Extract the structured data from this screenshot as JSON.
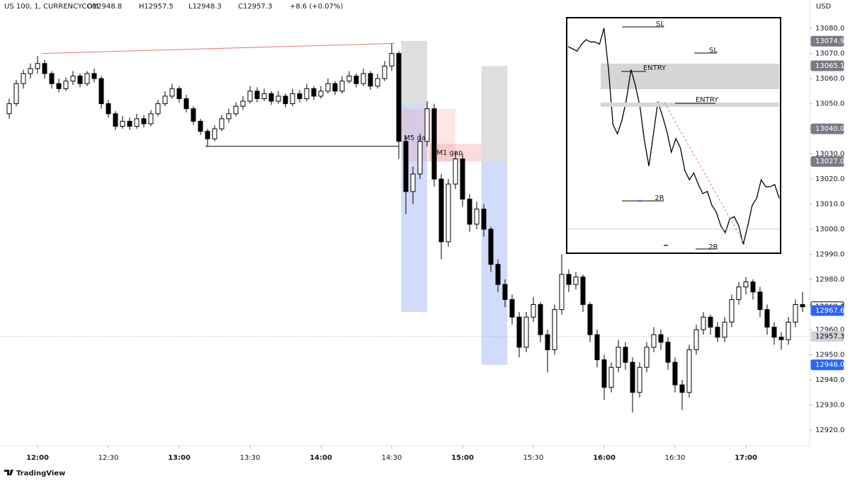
{
  "header": {
    "title": "US 100, 1, CURRENCYCOM",
    "ohlc": [
      "O12948.8",
      "H12957.5",
      "L12948.3",
      "C12957.3"
    ],
    "change": "+8.6 (+0.07%)",
    "currency": "USD"
  },
  "footer": {
    "brand": "TradingView"
  },
  "chart_data": {
    "type": "candlestick",
    "x": [
      "11:48",
      "11:51",
      "11:54",
      "11:57",
      "12:00",
      "12:03",
      "12:06",
      "12:09",
      "12:12",
      "12:15",
      "12:18",
      "12:21",
      "12:24",
      "12:27",
      "12:30",
      "12:33",
      "12:36",
      "12:39",
      "12:42",
      "12:45",
      "12:48",
      "12:51",
      "12:54",
      "12:57",
      "13:00",
      "13:03",
      "13:06",
      "13:09",
      "13:12",
      "13:15",
      "13:18",
      "13:21",
      "13:24",
      "13:27",
      "13:30",
      "13:33",
      "13:36",
      "13:39",
      "13:42",
      "13:45",
      "13:48",
      "13:51",
      "13:54",
      "13:57",
      "14:00",
      "14:03",
      "14:06",
      "14:09",
      "14:12",
      "14:15",
      "14:18",
      "14:21",
      "14:24",
      "14:27",
      "14:30",
      "14:33",
      "14:36",
      "14:39",
      "14:42",
      "14:45",
      "14:48",
      "14:51",
      "14:54",
      "14:57",
      "15:00",
      "15:03",
      "15:06",
      "15:09",
      "15:12",
      "15:15",
      "15:18",
      "15:21",
      "15:24",
      "15:27",
      "15:30",
      "15:33",
      "15:36",
      "15:39",
      "15:42",
      "15:45",
      "15:48",
      "15:51",
      "15:54",
      "15:57",
      "16:00",
      "16:03",
      "16:06",
      "16:09",
      "16:12",
      "16:15",
      "16:18",
      "16:21",
      "16:24",
      "16:27",
      "16:30",
      "16:33",
      "16:36",
      "16:39",
      "16:42",
      "16:45",
      "16:48",
      "16:51",
      "16:54",
      "16:57",
      "17:00",
      "17:03",
      "17:06",
      "17:09",
      "17:12",
      "17:15",
      "17:18",
      "17:21",
      "17:24"
    ],
    "candles": [
      [
        13046,
        13052,
        13044,
        13050
      ],
      [
        13050,
        13059.5,
        13049,
        13058
      ],
      [
        13058,
        13063.5,
        13056,
        13062
      ],
      [
        13062,
        13066,
        13060,
        13064
      ],
      [
        13064,
        13069,
        13062,
        13066
      ],
      [
        13066,
        13067.5,
        13060,
        13062
      ],
      [
        13062,
        13063,
        13056,
        13058
      ],
      [
        13058,
        13060,
        13054.5,
        13056
      ],
      [
        13056,
        13060.5,
        13055,
        13059
      ],
      [
        13059,
        13063,
        13057.5,
        13061
      ],
      [
        13061,
        13062,
        13056.5,
        13058
      ],
      [
        13058,
        13063,
        13057,
        13062
      ],
      [
        13062,
        13064,
        13058.5,
        13060
      ],
      [
        13060,
        13061,
        13048,
        13050
      ],
      [
        13050,
        13051.5,
        13044.5,
        13046
      ],
      [
        13046,
        13047,
        13039.5,
        13041
      ],
      [
        13041,
        13045,
        13040,
        13043
      ],
      [
        13043,
        13044.5,
        13039.5,
        13041
      ],
      [
        13041,
        13046,
        13040,
        13044
      ],
      [
        13044,
        13045.5,
        13040.5,
        13042
      ],
      [
        13042,
        13047.5,
        13041,
        13046
      ],
      [
        13046,
        13051.5,
        13045,
        13050
      ],
      [
        13050,
        13055,
        13049,
        13053
      ],
      [
        13053,
        13058,
        13052,
        13056
      ],
      [
        13056,
        13057,
        13050.5,
        13052
      ],
      [
        13052,
        13053.5,
        13046.5,
        13048
      ],
      [
        13048,
        13049,
        13041.5,
        13043
      ],
      [
        13043,
        13044,
        13037.5,
        13039
      ],
      [
        13039,
        13040,
        13033,
        13036
      ],
      [
        13036,
        13041.5,
        13035,
        13040
      ],
      [
        13040,
        13045.5,
        13039,
        13044
      ],
      [
        13044,
        13048,
        13042.5,
        13046
      ],
      [
        13046,
        13050.5,
        13045,
        13049
      ],
      [
        13049,
        13053,
        13047.5,
        13051
      ],
      [
        13051,
        13057,
        13050,
        13055
      ],
      [
        13055,
        13056.5,
        13050.5,
        13052
      ],
      [
        13052,
        13056,
        13051,
        13054
      ],
      [
        13054,
        13055,
        13049.5,
        13051
      ],
      [
        13051,
        13055,
        13050,
        13053
      ],
      [
        13053,
        13054,
        13048.5,
        13050
      ],
      [
        13050,
        13056,
        13049,
        13054
      ],
      [
        13054,
        13055.5,
        13050.5,
        13052
      ],
      [
        13052,
        13058,
        13051,
        13056
      ],
      [
        13056,
        13057,
        13051.5,
        13053
      ],
      [
        13053,
        13057,
        13052,
        13055
      ],
      [
        13055,
        13060,
        13054,
        13058
      ],
      [
        13058,
        13059,
        13053.5,
        13055
      ],
      [
        13055,
        13061,
        13054,
        13059
      ],
      [
        13059,
        13063,
        13058,
        13061
      ],
      [
        13061,
        13062,
        13056.5,
        13058
      ],
      [
        13058,
        13064,
        13057,
        13062
      ],
      [
        13062,
        13063,
        13055.5,
        13057
      ],
      [
        13057,
        13062,
        13056,
        13060
      ],
      [
        13060,
        13067,
        13059,
        13065
      ],
      [
        13065,
        13074,
        13063,
        13070
      ],
      [
        13070,
        13071,
        13028,
        13035
      ],
      [
        13035,
        13037,
        13006,
        13015
      ],
      [
        13015,
        13025,
        13010,
        13022
      ],
      [
        13022,
        13038,
        13020,
        13035
      ],
      [
        13035,
        13051,
        13033,
        13048
      ],
      [
        13048,
        13050,
        13017,
        13020
      ],
      [
        13020,
        13022,
        12988,
        12995
      ],
      [
        12995,
        13020,
        12993,
        13018
      ],
      [
        13018,
        13031,
        13016,
        13028
      ],
      [
        13028,
        13030,
        13009,
        13012
      ],
      [
        13012,
        13014,
        12999,
        13002
      ],
      [
        13002,
        13011,
        13000,
        13008
      ],
      [
        13008,
        13010,
        12997,
        13000
      ],
      [
        13000,
        13001,
        12983,
        12986
      ],
      [
        12986,
        12988,
        12975,
        12978
      ],
      [
        12978,
        12980,
        12969,
        12972
      ],
      [
        12972,
        12974,
        12962,
        12965
      ],
      [
        12965,
        12967,
        12949,
        12953
      ],
      [
        12953,
        12967,
        12951,
        12965
      ],
      [
        12965,
        12973,
        12963,
        12970
      ],
      [
        12970,
        12971,
        12955,
        12958
      ],
      [
        12958,
        12960,
        12943,
        12952
      ],
      [
        12952,
        12970,
        12950,
        12968
      ],
      [
        12968,
        12990,
        12966,
        12982
      ],
      [
        12982,
        12984,
        12975,
        12978
      ],
      [
        12978,
        12983,
        12976,
        12981
      ],
      [
        12981,
        12982,
        12967,
        12970
      ],
      [
        12970,
        12971,
        12955,
        12958
      ],
      [
        12958,
        12960,
        12945,
        12948
      ],
      [
        12948,
        12950,
        12932,
        12937
      ],
      [
        12937,
        12947,
        12935,
        12945
      ],
      [
        12945,
        12956,
        12943,
        12953
      ],
      [
        12953,
        12955,
        12944,
        12947
      ],
      [
        12947,
        12949,
        12927,
        12935
      ],
      [
        12935,
        12947,
        12933,
        12945
      ],
      [
        12945,
        12955,
        12943,
        12953
      ],
      [
        12953,
        12961,
        12951,
        12958
      ],
      [
        12958,
        12960,
        12952,
        12955
      ],
      [
        12955,
        12957,
        12944,
        12947
      ],
      [
        12947,
        12949,
        12935,
        12938
      ],
      [
        12938,
        12940,
        12928,
        12935
      ],
      [
        12935,
        12954,
        12933,
        12952
      ],
      [
        12952,
        12962,
        12950,
        12960
      ],
      [
        12960,
        12967,
        12958,
        12965
      ],
      [
        12965,
        12966,
        12958,
        12961
      ],
      [
        12961,
        12963,
        12955,
        12957
      ],
      [
        12957,
        12965,
        12955,
        12963
      ],
      [
        12963,
        12974,
        12961,
        12972
      ],
      [
        12972,
        12979,
        12970,
        12977
      ],
      [
        12977,
        12981,
        12974,
        12979
      ],
      [
        12979,
        12980,
        12972,
        12975
      ],
      [
        12975,
        12977,
        12965,
        12968
      ],
      [
        12968,
        12970,
        12958,
        12961
      ],
      [
        12961,
        12963,
        12954,
        12957
      ],
      [
        12957,
        12959,
        12952,
        12956
      ],
      [
        12956,
        12965,
        12954,
        12963
      ],
      [
        12963,
        12972,
        12961,
        12970
      ],
      [
        12970,
        12975,
        12967,
        12969.1
      ]
    ],
    "up_color": "#ffffff",
    "down_color": "#000000",
    "ylim": [
      12913.8,
      13091.3
    ],
    "yticks": [
      {
        "value": 12920,
        "label": "12920.0"
      },
      {
        "value": 12930,
        "label": "12930.0"
      },
      {
        "value": 12940,
        "label": "12940.0"
      },
      {
        "value": 12950,
        "label": "12950.0"
      },
      {
        "value": 12960,
        "label": "12960.0"
      },
      {
        "value": 12970,
        "label": "12970.0"
      },
      {
        "value": 12980,
        "label": "12980.0"
      },
      {
        "value": 12990,
        "label": "12990.0"
      },
      {
        "value": 13000,
        "label": "13000.0"
      },
      {
        "value": 13010,
        "label": "13010.0"
      },
      {
        "value": 13020,
        "label": "13020.0"
      },
      {
        "value": 13030,
        "label": "13030.0"
      },
      {
        "value": 13040,
        "label": "13040.0"
      },
      {
        "value": 13050,
        "label": "13050.0"
      },
      {
        "value": 13060,
        "label": "13060.0"
      },
      {
        "value": 13070,
        "label": "13070.0"
      },
      {
        "value": 13080,
        "label": "13080.0"
      }
    ],
    "xticks": [
      "12:00",
      "12:30",
      "13:00",
      "13:30",
      "14:00",
      "14:30",
      "15:00",
      "15:30",
      "16:00",
      "16:30",
      "17:00"
    ],
    "price_labels": [
      {
        "value": 13074.9,
        "color": "#787b86",
        "text_color": "#ffffff"
      },
      {
        "value": 13065.1,
        "color": "#787b86",
        "text_color": "#ffffff"
      },
      {
        "value": 13040,
        "label": "13040.0",
        "color": "#787b86",
        "text_color": "#ffffff"
      },
      {
        "value": 13027,
        "label": "13027.0",
        "color": "#787b86",
        "text_color": "#ffffff"
      },
      {
        "value": 12969.1,
        "color": "#ffffff",
        "text_color": "#000000"
      },
      {
        "value": 12967.6,
        "color": "#2962ff",
        "text_color": "#ffffff"
      },
      {
        "value": 12957.3,
        "color": "#d1d4dc",
        "text_color": "#000000",
        "dotted": true
      },
      {
        "value": 12946,
        "label": "12946.0",
        "color": "#2962ff",
        "text_color": "#ffffff"
      }
    ],
    "trendlines": [
      {
        "x": [
          "12:02",
          "14:31"
        ],
        "y": [
          13070,
          13074
        ],
        "color": "#e57373"
      },
      {
        "x": [
          "13:11",
          "14:33"
        ],
        "y": [
          13033,
          13033
        ],
        "color": "#000000"
      }
    ],
    "zones": [
      {
        "x": [
          "14:34",
          "14:45"
        ],
        "y": [
          13075,
          13050
        ],
        "color": "rgba(160,160,160,0.35)"
      },
      {
        "x": [
          "14:34",
          "14:45"
        ],
        "y": [
          13050,
          12967
        ],
        "color": "rgba(90,130,240,0.28)"
      },
      {
        "x": [
          "15:08",
          "15:19"
        ],
        "y": [
          13065,
          13027
        ],
        "color": "rgba(160,160,160,0.35)"
      },
      {
        "x": [
          "15:08",
          "15:19"
        ],
        "y": [
          13027,
          12946
        ],
        "color": "rgba(90,130,240,0.28)"
      }
    ],
    "gaps": [
      {
        "label": "M5 gap",
        "x": [
          "14:34",
          "14:57"
        ],
        "y": [
          13048,
          13027
        ],
        "color": "rgba(240,140,140,0.22)"
      },
      {
        "label": "M1 gap",
        "x": [
          "14:46",
          "15:08"
        ],
        "y": [
          13034,
          13027
        ],
        "color": "rgba(240,140,140,0.3)"
      }
    ],
    "inset": {
      "labels": [
        "SL",
        "SL",
        "ENTRY",
        "ENTRY",
        "2R",
        "2R"
      ],
      "ylim": [
        12985,
        13085
      ],
      "values": [
        13074,
        13073,
        13072,
        13075,
        13077,
        13076,
        13076,
        13075,
        13082,
        13064,
        13040,
        13036,
        13042,
        13051,
        13064,
        13057,
        13048,
        13033,
        13022,
        13036,
        13050,
        13044,
        13037,
        13028,
        13034,
        13030,
        13020,
        13016,
        13019,
        13014,
        13010,
        13011,
        13005,
        13002,
        12996,
        12993,
        12999,
        13000,
        12996,
        12988,
        12996,
        13005,
        13008,
        13016,
        13013,
        13013,
        13014,
        13008
      ]
    }
  }
}
